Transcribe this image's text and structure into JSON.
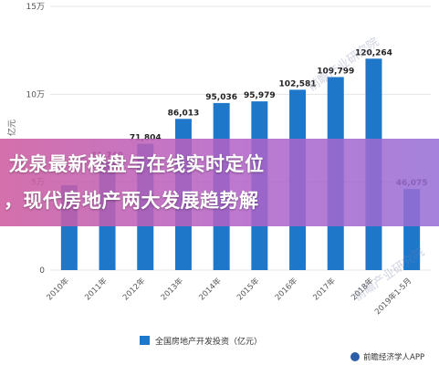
{
  "chart_data": {
    "type": "bar",
    "categories": [
      "2010年",
      "2011年",
      "2012年",
      "2013年",
      "2014年",
      "2015年",
      "2016年",
      "2017年",
      "2018年",
      "2019年1-5月"
    ],
    "values": [
      48267,
      61740,
      71804,
      86013,
      95036,
      95979,
      102581,
      109799,
      120264,
      46075
    ],
    "data_labels": [
      "",
      "61,740",
      "71,804",
      "86,013",
      "95,036",
      "95,979",
      "102,581",
      "109,799",
      "120,264",
      "46,075"
    ],
    "ylabel": "亿元",
    "yticks": [
      "0",
      "5万",
      "10万",
      "15万"
    ],
    "ylim": [
      0,
      150000
    ],
    "grid": true,
    "legend": [
      {
        "name": "全国房地产开发投资（亿元）",
        "color": "#1f77c9"
      }
    ],
    "bar_color": "#1f77c9"
  },
  "banner": {
    "line1": "龙泉最新楼盘与在线实时定位",
    "line2": "，现代房地产两大发展趋势解"
  },
  "watermark": "前瞻产业研究院",
  "source": "前瞻经济学人APP"
}
